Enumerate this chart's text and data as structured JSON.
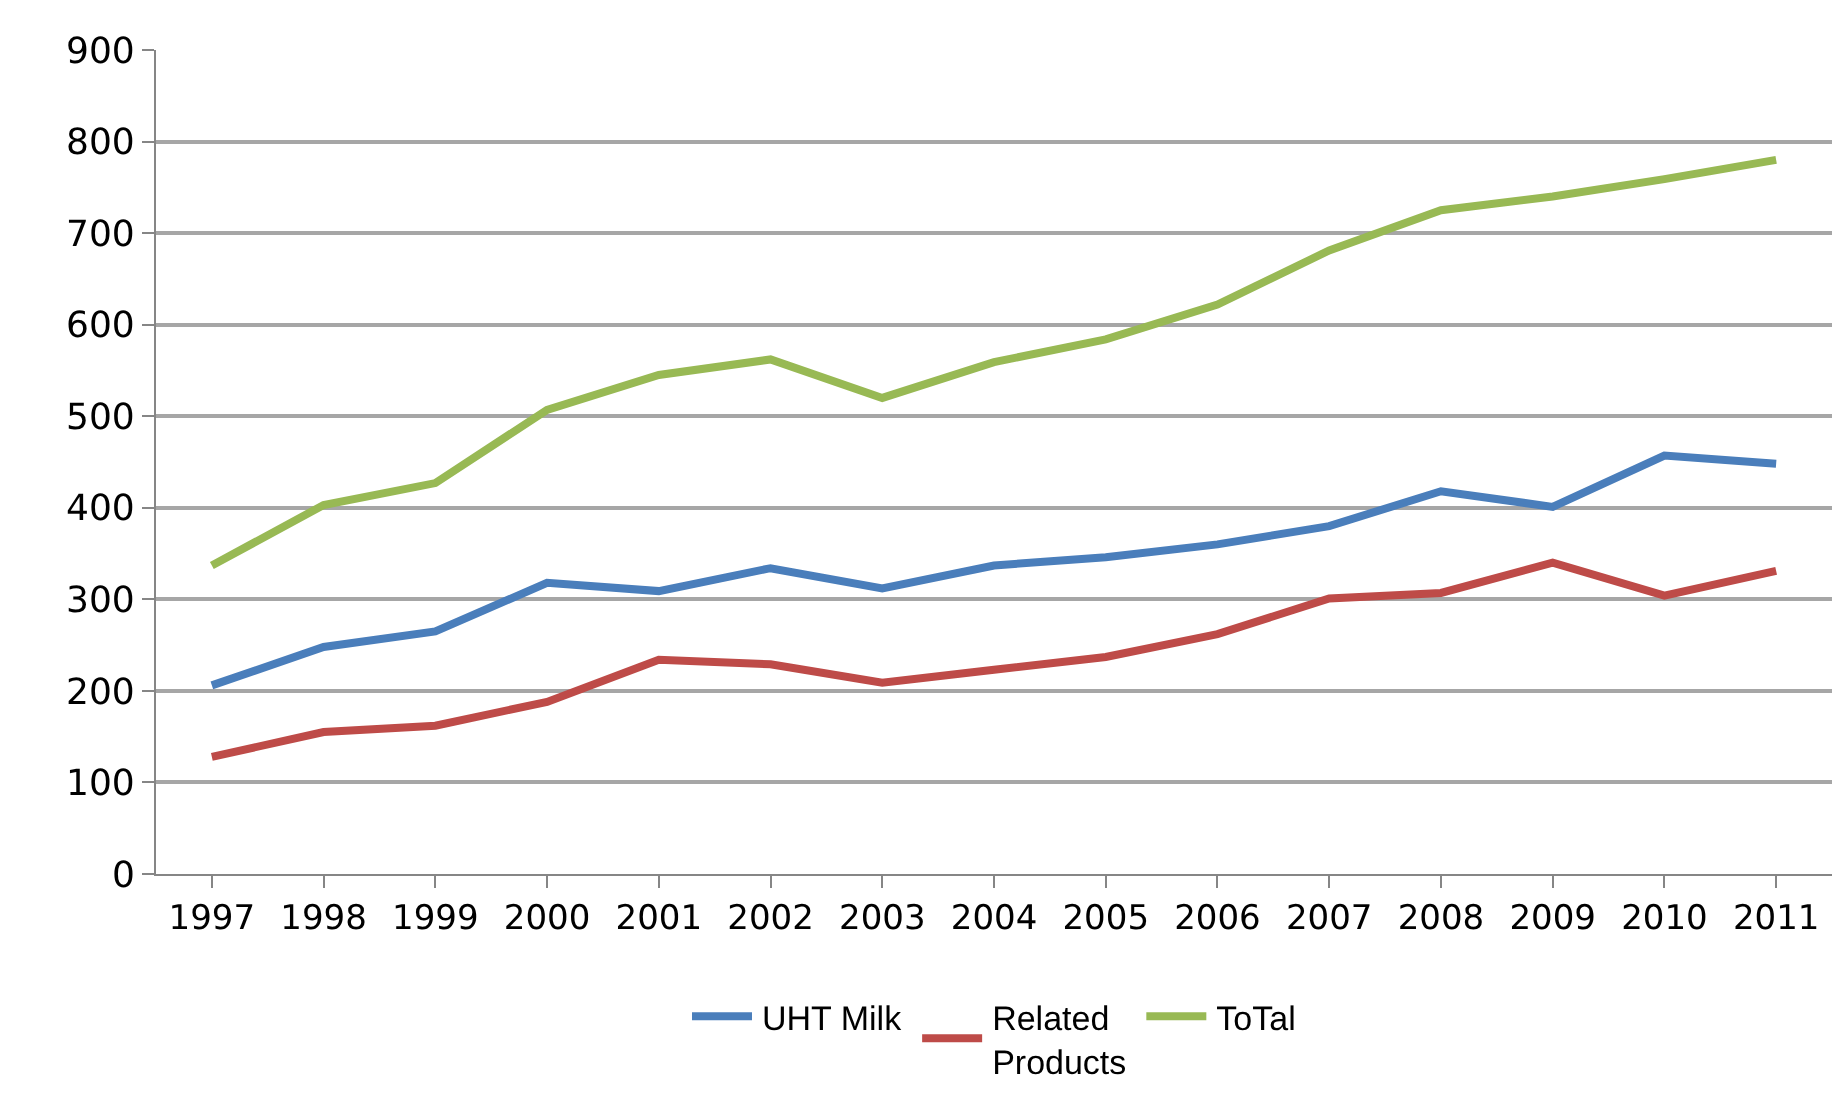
{
  "chart_data": {
    "type": "line",
    "categories": [
      "1997",
      "1998",
      "1999",
      "2000",
      "2001",
      "2002",
      "2003",
      "2004",
      "2005",
      "2006",
      "2007",
      "2008",
      "2009",
      "2010",
      "2011"
    ],
    "series": [
      {
        "name": "UHT Milk",
        "color": "#4a7ebb",
        "values": [
          206,
          248,
          265,
          318,
          309,
          334,
          312,
          337,
          346,
          360,
          380,
          418,
          401,
          457,
          448
        ]
      },
      {
        "name": "Related\nProducts",
        "color": "#be4b48",
        "values": [
          128,
          155,
          162,
          188,
          234,
          229,
          209,
          223,
          237,
          262,
          301,
          307,
          340,
          304,
          331
        ]
      },
      {
        "name": "ToTal",
        "color": "#98b954",
        "values": [
          337,
          403,
          427,
          507,
          545,
          562,
          520,
          559,
          584,
          622,
          681,
          725,
          740,
          759,
          780
        ]
      }
    ],
    "ylim": [
      0,
      900
    ],
    "yticks": [
      0,
      100,
      200,
      300,
      400,
      500,
      600,
      700,
      800,
      900
    ],
    "grid": "y",
    "legend": "bottom",
    "marker": "none",
    "line_style": "solid"
  }
}
